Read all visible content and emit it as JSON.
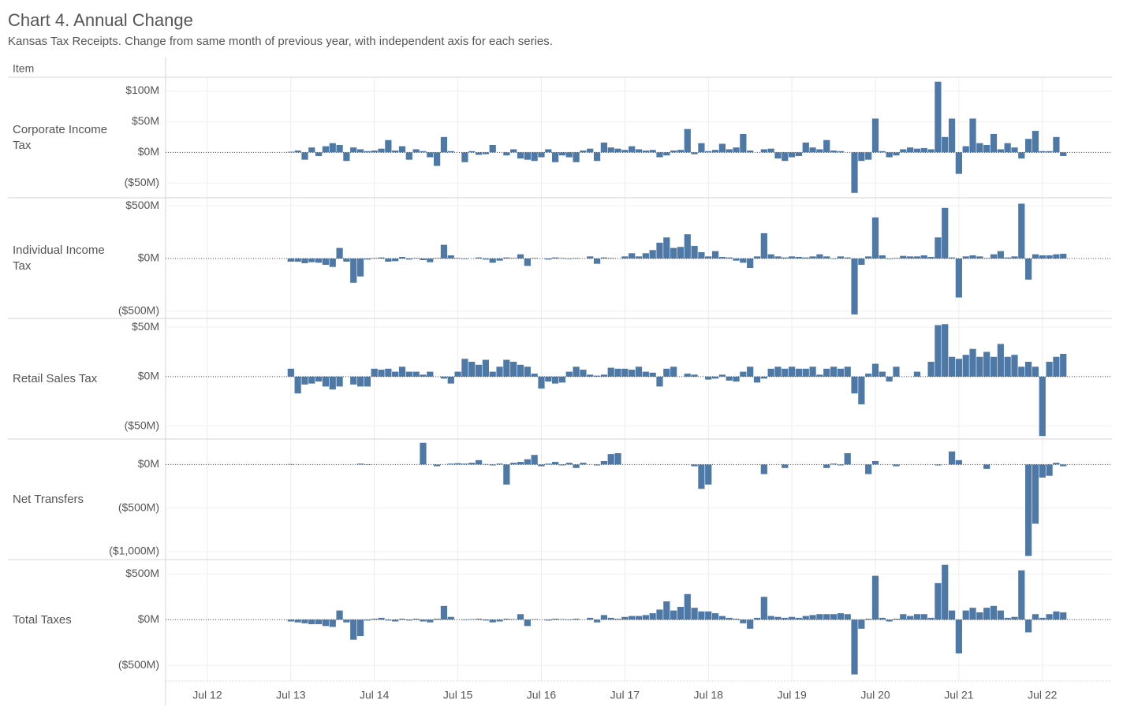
{
  "chart_data": {
    "type": "bar",
    "title": "Chart 4. Annual Change",
    "subtitle": "Kansas Tax Receipts. Change from same month of previous year, with independent axis for each series.",
    "row_header": "Item",
    "color": "#4e79a7",
    "grid": true,
    "x": [
      "2013-07",
      "2013-08",
      "2013-09",
      "2013-10",
      "2013-11",
      "2013-12",
      "2014-01",
      "2014-02",
      "2014-03",
      "2014-04",
      "2014-05",
      "2014-06",
      "2014-07",
      "2014-08",
      "2014-09",
      "2014-10",
      "2014-11",
      "2014-12",
      "2015-01",
      "2015-02",
      "2015-03",
      "2015-04",
      "2015-05",
      "2015-06",
      "2015-07",
      "2015-08",
      "2015-09",
      "2015-10",
      "2015-11",
      "2015-12",
      "2016-01",
      "2016-02",
      "2016-03",
      "2016-04",
      "2016-05",
      "2016-06",
      "2016-07",
      "2016-08",
      "2016-09",
      "2016-10",
      "2016-11",
      "2016-12",
      "2017-01",
      "2017-02",
      "2017-03",
      "2017-04",
      "2017-05",
      "2017-06",
      "2017-07",
      "2017-08",
      "2017-09",
      "2017-10",
      "2017-11",
      "2017-12",
      "2018-01",
      "2018-02",
      "2018-03",
      "2018-04",
      "2018-05",
      "2018-06",
      "2018-07",
      "2018-08",
      "2018-09",
      "2018-10",
      "2018-11",
      "2018-12",
      "2019-01",
      "2019-02",
      "2019-03",
      "2019-04",
      "2019-05",
      "2019-06",
      "2019-07",
      "2019-08",
      "2019-09",
      "2019-10",
      "2019-11",
      "2019-12",
      "2020-01",
      "2020-02",
      "2020-03",
      "2020-04",
      "2020-05",
      "2020-06",
      "2020-07",
      "2020-08",
      "2020-09",
      "2020-10",
      "2020-11",
      "2020-12",
      "2021-01",
      "2021-02",
      "2021-03",
      "2021-04",
      "2021-05",
      "2021-06",
      "2021-07",
      "2021-08",
      "2021-09",
      "2021-10",
      "2021-11",
      "2021-12",
      "2022-01",
      "2022-02",
      "2022-03",
      "2022-04",
      "2022-05",
      "2022-06",
      "2022-07",
      "2022-08",
      "2022-09",
      "2022-10"
    ],
    "xlim": [
      "2012-01",
      "2023-05"
    ],
    "xticks": [
      {
        "value": "2012-07",
        "label": "Jul 12"
      },
      {
        "value": "2013-07",
        "label": "Jul 13"
      },
      {
        "value": "2014-07",
        "label": "Jul 14"
      },
      {
        "value": "2015-07",
        "label": "Jul 15"
      },
      {
        "value": "2016-07",
        "label": "Jul 16"
      },
      {
        "value": "2017-07",
        "label": "Jul 17"
      },
      {
        "value": "2018-07",
        "label": "Jul 18"
      },
      {
        "value": "2019-07",
        "label": "Jul 19"
      },
      {
        "value": "2020-07",
        "label": "Jul 20"
      },
      {
        "value": "2021-07",
        "label": "Jul 21"
      },
      {
        "value": "2022-07",
        "label": "Jul 22"
      }
    ],
    "series": [
      {
        "name": "Corporate Income Tax",
        "ylim": [
          -74,
          121
        ],
        "yticks": [
          {
            "value": 100,
            "label": "$100M"
          },
          {
            "value": 50,
            "label": "$50M"
          },
          {
            "value": 0,
            "label": "$0M"
          },
          {
            "value": -50,
            "label": "($50M)"
          }
        ],
        "values": [
          1,
          3,
          -12,
          8,
          -6,
          10,
          15,
          12,
          -14,
          8,
          5,
          2,
          3,
          6,
          20,
          3,
          10,
          -12,
          5,
          2,
          -8,
          -22,
          25,
          2,
          0,
          -16,
          2,
          -4,
          -3,
          12,
          0,
          -5,
          5,
          -10,
          -12,
          -14,
          -8,
          5,
          -16,
          -5,
          -8,
          -16,
          3,
          6,
          -14,
          16,
          8,
          6,
          4,
          10,
          5,
          3,
          4,
          -8,
          -5,
          3,
          4,
          38,
          -3,
          15,
          2,
          4,
          14,
          5,
          8,
          30,
          3,
          0,
          5,
          6,
          -10,
          -14,
          -8,
          -6,
          16,
          8,
          5,
          20,
          3,
          2,
          0,
          -66,
          -14,
          -12,
          55,
          2,
          -8,
          -5,
          5,
          8,
          6,
          7,
          5,
          115,
          25,
          55,
          -35,
          10,
          55,
          15,
          12,
          30,
          5,
          15,
          8,
          -10,
          22,
          35,
          2,
          2,
          25,
          -6
        ]
      },
      {
        "name": "Individual Income Tax",
        "ylim": [
          -568,
          568
        ],
        "yticks": [
          {
            "value": 500,
            "label": "$500M"
          },
          {
            "value": 0,
            "label": "$0M"
          },
          {
            "value": -500,
            "label": "($500M)"
          }
        ],
        "values": [
          -30,
          -30,
          -45,
          -35,
          -40,
          -60,
          -80,
          100,
          -30,
          -230,
          -170,
          -10,
          5,
          10,
          -30,
          -25,
          15,
          -10,
          5,
          -15,
          -35,
          5,
          130,
          30,
          5,
          -5,
          0,
          10,
          -10,
          -40,
          -20,
          10,
          5,
          40,
          -70,
          5,
          0,
          -10,
          10,
          5,
          -5,
          5,
          0,
          20,
          -50,
          10,
          5,
          0,
          20,
          50,
          20,
          50,
          80,
          150,
          200,
          100,
          110,
          230,
          120,
          60,
          20,
          70,
          15,
          10,
          -20,
          -40,
          -90,
          20,
          240,
          40,
          20,
          10,
          20,
          15,
          10,
          20,
          40,
          20,
          -5,
          20,
          10,
          -530,
          -60,
          20,
          390,
          30,
          -5,
          5,
          25,
          20,
          20,
          30,
          15,
          200,
          480,
          10,
          -370,
          20,
          30,
          20,
          5,
          40,
          70,
          10,
          20,
          520,
          -200,
          40,
          30,
          30,
          40,
          45
        ]
      },
      {
        "name": "Retail Sales Tax",
        "ylim": [
          -63,
          58
        ],
        "yticks": [
          {
            "value": 50,
            "label": "$50M"
          },
          {
            "value": 0,
            "label": "$0M"
          },
          {
            "value": -50,
            "label": "($50M)"
          }
        ],
        "values": [
          8,
          -17,
          -8,
          -7,
          -5,
          -10,
          -13,
          -10,
          0,
          -8,
          -10,
          -10,
          8,
          7,
          8,
          5,
          10,
          5,
          5,
          2,
          5,
          0,
          -2,
          -7,
          5,
          18,
          15,
          12,
          17,
          5,
          10,
          17,
          15,
          12,
          10,
          3,
          -12,
          -5,
          -7,
          -6,
          5,
          10,
          7,
          2,
          1,
          2,
          9,
          8,
          8,
          7,
          10,
          5,
          4,
          -10,
          8,
          10,
          0,
          3,
          2,
          0,
          -3,
          -2,
          2,
          -4,
          -5,
          5,
          10,
          -6,
          -2,
          8,
          10,
          8,
          10,
          8,
          8,
          10,
          2,
          8,
          10,
          8,
          10,
          -17,
          -28,
          3,
          13,
          5,
          -5,
          10,
          0,
          0,
          5,
          0,
          15,
          52,
          53,
          20,
          18,
          22,
          28,
          20,
          25,
          20,
          33,
          20,
          22,
          10,
          15,
          10,
          -60,
          15,
          20,
          23
        ]
      },
      {
        "name": "Net Transfers",
        "ylim": [
          -1092,
          284
        ],
        "yticks": [
          {
            "value": 0,
            "label": "$0M"
          },
          {
            "value": -500,
            "label": "($500M)"
          },
          {
            "value": -1000,
            "label": "($1,000M)"
          }
        ],
        "values": [
          5,
          0,
          0,
          0,
          0,
          0,
          0,
          0,
          0,
          0,
          10,
          -5,
          0,
          0,
          0,
          0,
          0,
          0,
          0,
          250,
          0,
          -20,
          0,
          10,
          15,
          10,
          20,
          50,
          5,
          -10,
          10,
          -230,
          20,
          30,
          60,
          110,
          -20,
          10,
          30,
          -10,
          20,
          -40,
          20,
          0,
          -10,
          40,
          120,
          130,
          0,
          0,
          0,
          0,
          0,
          0,
          0,
          0,
          0,
          0,
          -20,
          -280,
          -230,
          0,
          0,
          0,
          0,
          0,
          0,
          0,
          -110,
          0,
          0,
          -40,
          0,
          0,
          0,
          0,
          0,
          -40,
          10,
          -10,
          130,
          0,
          0,
          -110,
          40,
          0,
          0,
          -20,
          0,
          0,
          0,
          0,
          0,
          -10,
          0,
          150,
          50,
          0,
          0,
          0,
          -50,
          0,
          0,
          0,
          0,
          0,
          -1050,
          -680,
          -150,
          -130,
          20,
          -20
        ]
      },
      {
        "name": "Total Taxes",
        "ylim": [
          -663,
          649
        ],
        "yticks": [
          {
            "value": 500,
            "label": "$500M"
          },
          {
            "value": 0,
            "label": "$0M"
          },
          {
            "value": -500,
            "label": "($500M)"
          }
        ],
        "values": [
          -20,
          -30,
          -40,
          -50,
          -50,
          -70,
          -80,
          100,
          -30,
          -220,
          -180,
          -10,
          10,
          20,
          -10,
          -20,
          10,
          -10,
          10,
          -20,
          -30,
          10,
          150,
          30,
          0,
          -5,
          5,
          10,
          -10,
          -30,
          -20,
          10,
          5,
          60,
          -70,
          5,
          0,
          -10,
          10,
          5,
          -5,
          10,
          0,
          20,
          -30,
          50,
          20,
          10,
          30,
          40,
          40,
          50,
          70,
          110,
          200,
          100,
          140,
          280,
          130,
          90,
          90,
          70,
          40,
          20,
          10,
          -40,
          -100,
          20,
          250,
          40,
          30,
          20,
          30,
          20,
          40,
          50,
          60,
          60,
          60,
          70,
          60,
          -600,
          -100,
          10,
          480,
          20,
          -20,
          10,
          60,
          40,
          60,
          60,
          20,
          400,
          600,
          100,
          -370,
          100,
          130,
          80,
          130,
          150,
          100,
          20,
          30,
          540,
          -140,
          60,
          20,
          60,
          90,
          80
        ]
      }
    ]
  }
}
